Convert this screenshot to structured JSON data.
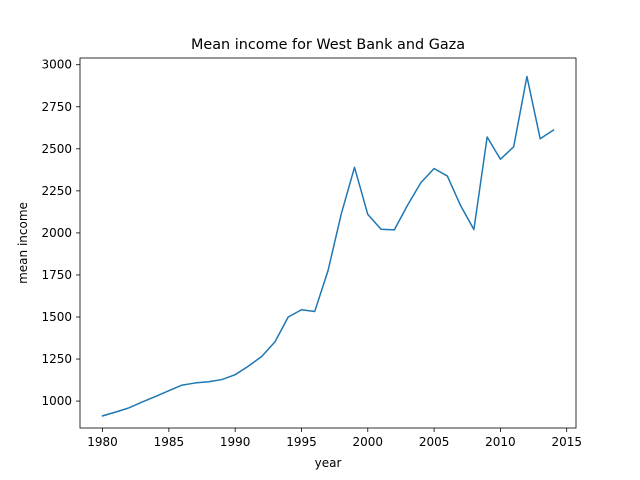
{
  "chart_data": {
    "type": "line",
    "title": "Mean income for West Bank and Gaza",
    "xlabel": "year",
    "ylabel": "mean income",
    "xlim": [
      1978.3,
      2015.7
    ],
    "ylim": [
      840,
      3040
    ],
    "grid": false,
    "legend": "none",
    "x_ticks": [
      1980,
      1985,
      1990,
      1995,
      2000,
      2005,
      2010,
      2015
    ],
    "y_ticks": [
      1000,
      1250,
      1500,
      1750,
      2000,
      2250,
      2500,
      2750,
      3000
    ],
    "x_tick_labels": [
      "1980",
      "1985",
      "1990",
      "1995",
      "2000",
      "2005",
      "2010",
      "2015"
    ],
    "y_tick_labels": [
      "1000",
      "1250",
      "1500",
      "1750",
      "2000",
      "2250",
      "2500",
      "2750",
      "3000"
    ],
    "series": [
      {
        "color": "#1f77b4",
        "x": [
          1980,
          1981,
          1982,
          1983,
          1984,
          1985,
          1986,
          1987,
          1988,
          1989,
          1990,
          1991,
          1992,
          1993,
          1994,
          1995,
          1996,
          1997,
          1998,
          1999,
          2000,
          2001,
          2002,
          2003,
          2004,
          2005,
          2006,
          2007,
          2008,
          2009,
          2010,
          2011,
          2012,
          2013,
          2014
        ],
        "y": [
          912,
          935,
          960,
          995,
          1028,
          1062,
          1095,
          1108,
          1115,
          1128,
          1157,
          1208,
          1265,
          1352,
          1500,
          1543,
          1533,
          1775,
          2113,
          2390,
          2110,
          2022,
          2018,
          2165,
          2298,
          2383,
          2338,
          2162,
          2020,
          2570,
          2438,
          2512,
          2930,
          2560,
          2612
        ]
      }
    ]
  }
}
